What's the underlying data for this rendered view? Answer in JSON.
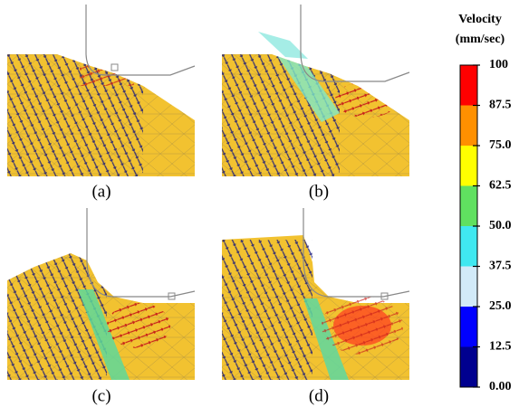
{
  "figure": {
    "panels": [
      "(a)",
      "(b)",
      "(c)",
      "(d)"
    ],
    "colorbar": {
      "title": "Velocity",
      "unit": "(mm/sec)",
      "lim": [
        0,
        100
      ],
      "ticks": [
        {
          "value": 0,
          "label": "0.00"
        },
        12.5,
        {
          "value": 25,
          "label": "25.0"
        },
        37.5,
        {
          "value": 50,
          "label": "50.0"
        },
        62.5,
        {
          "value": 75,
          "label": "75.0"
        },
        87.5,
        100
      ],
      "colors": [
        "#00008f",
        "#0000ff",
        "#d2eaf8",
        "#40e8f0",
        "#60e060",
        "#ffff00",
        "#ff9000",
        "#ff0000"
      ]
    }
  }
}
